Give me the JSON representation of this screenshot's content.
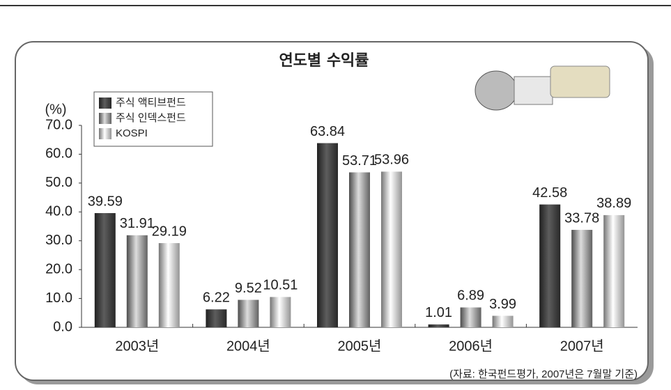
{
  "chart_data": {
    "type": "bar",
    "title": "연도별 수익률",
    "y_unit": "(%)",
    "categories": [
      "2003년",
      "2004년",
      "2005년",
      "2006년",
      "2007년"
    ],
    "series": [
      {
        "name": "주식 액티브펀드",
        "color": "#3a3a3a",
        "values": [
          39.59,
          6.22,
          63.84,
          1.01,
          42.58
        ]
      },
      {
        "name": "주식 인덱스펀드",
        "color": "#8a8a8a",
        "values": [
          31.91,
          9.52,
          53.71,
          6.89,
          33.78
        ]
      },
      {
        "name": "KOSPI",
        "color": "#d4d4d4",
        "values": [
          29.19,
          10.51,
          53.96,
          3.99,
          38.89
        ]
      }
    ],
    "ylim": [
      0,
      70
    ],
    "yticks": [
      {
        "value": 0,
        "label": "0.0"
      },
      {
        "value": 10,
        "label": "10.0"
      },
      {
        "value": 20,
        "label": "20.0"
      },
      {
        "value": 30,
        "label": "30.0"
      },
      {
        "value": 40,
        "label": "40.0"
      },
      {
        "value": 50,
        "label": "50.0"
      },
      {
        "value": 60,
        "label": "60.0"
      },
      {
        "value": 70,
        "label": "70.0"
      }
    ],
    "source": "(자료: 한국펀드평가, 2007년은 7월말 기준)"
  }
}
